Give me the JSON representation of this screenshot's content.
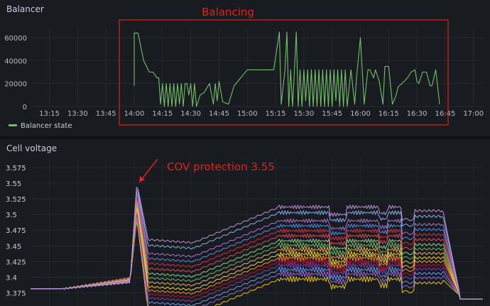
{
  "panels": {
    "balancer": {
      "title": "Balancer",
      "annotation": "Balancing",
      "legend": [
        "Balancer state"
      ]
    },
    "cell": {
      "title": "Cell voltage",
      "annotation": "COV protection 3.55"
    }
  },
  "colors": {
    "balancer_line": "#73bf69",
    "annotation_red": "#e0201e"
  },
  "chart_data": [
    {
      "type": "line",
      "title": "Balancer",
      "x_ticks": [
        "13:15",
        "13:30",
        "13:45",
        "14:00",
        "14:15",
        "14:30",
        "14:45",
        "15:00",
        "15:15",
        "15:30",
        "15:45",
        "16:00",
        "16:15",
        "16:30",
        "16:45",
        "17:00"
      ],
      "y_ticks": [
        "0",
        "20000",
        "40000",
        "60000"
      ],
      "ylim": [
        0,
        65000
      ],
      "xlim": [
        "13:05",
        "17:05"
      ],
      "legend_position": "bottom-left",
      "series": [
        {
          "name": "Balancer state",
          "x": [
            "14:00",
            "14:00",
            "14:02",
            "14:05",
            "14:08",
            "14:10",
            "14:12",
            "14:13",
            "14:14",
            "14:15",
            "14:16",
            "14:17",
            "14:18",
            "14:19",
            "14:20",
            "14:21",
            "14:22",
            "14:23",
            "14:24",
            "14:25",
            "14:26",
            "14:27",
            "14:28",
            "14:29",
            "14:30",
            "14:31",
            "14:32",
            "14:33",
            "14:35",
            "14:37",
            "14:40",
            "14:42",
            "14:43",
            "14:44",
            "14:45",
            "14:47",
            "14:50",
            "14:53",
            "15:00",
            "15:05",
            "15:10",
            "15:14",
            "15:17",
            "15:18",
            "15:20",
            "15:21",
            "15:22",
            "15:23",
            "15:24",
            "15:25",
            "15:26",
            "15:27",
            "15:28",
            "15:29",
            "15:30",
            "15:31",
            "15:32",
            "15:33",
            "15:34",
            "15:35",
            "15:36",
            "15:37",
            "15:38",
            "15:39",
            "15:40",
            "15:41",
            "15:42",
            "15:43",
            "15:44",
            "15:45",
            "15:46",
            "15:47",
            "15:48",
            "15:49",
            "15:50",
            "15:51",
            "15:52",
            "15:53",
            "15:55",
            "15:57",
            "15:58",
            "16:00",
            "16:02",
            "16:04",
            "16:05",
            "16:07",
            "16:08",
            "16:10",
            "16:12",
            "16:13",
            "16:15",
            "16:17",
            "16:19",
            "16:20",
            "16:22",
            "16:25",
            "16:27",
            "16:29",
            "16:30",
            "16:31",
            "16:33",
            "16:35",
            "16:37",
            "16:38",
            "16:40",
            "16:42"
          ],
          "y": [
            18000,
            64000,
            64000,
            40000,
            30000,
            30000,
            25000,
            25000,
            2000,
            20000,
            0,
            20000,
            0,
            20000,
            0,
            20000,
            0,
            20000,
            2000,
            20000,
            0,
            20000,
            20000,
            10000,
            20000,
            0,
            20000,
            0,
            10000,
            12000,
            20000,
            2000,
            20000,
            5000,
            22000,
            4000,
            2000,
            18000,
            32000,
            32000,
            32000,
            32000,
            65000,
            2000,
            32000,
            65000,
            0,
            32000,
            0,
            32000,
            65000,
            0,
            32000,
            0,
            32000,
            5000,
            32000,
            0,
            32000,
            0,
            32000,
            0,
            32000,
            0,
            32000,
            0,
            32000,
            0,
            32000,
            0,
            32000,
            5000,
            32000,
            0,
            32000,
            0,
            32000,
            0,
            32000,
            2000,
            26000,
            60000,
            2000,
            32000,
            32000,
            25000,
            32000,
            22000,
            2000,
            35000,
            35000,
            2000,
            10000,
            17000,
            20000,
            25000,
            30000,
            32000,
            22000,
            20000,
            30000,
            30000,
            18000,
            18000,
            32000,
            2000
          ]
        }
      ]
    },
    {
      "type": "line",
      "title": "Cell voltage",
      "y_ticks": [
        "3.375",
        "3.4",
        "3.425",
        "3.45",
        "3.475",
        "3.5",
        "3.525",
        "3.55",
        "3.575"
      ],
      "ylim": [
        3.37,
        3.585
      ],
      "xlim": [
        "13:05",
        "17:05"
      ]
    }
  ]
}
